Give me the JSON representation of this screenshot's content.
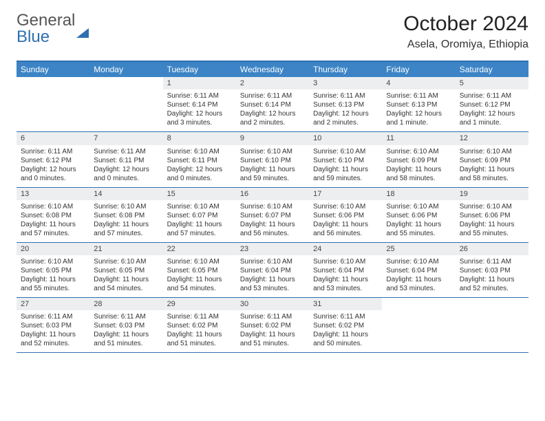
{
  "brand": {
    "part1": "General",
    "part2": "Blue"
  },
  "title": "October 2024",
  "subtitle": "Asela, Oromiya, Ethiopia",
  "colors": {
    "header_bar": "#3c84c6",
    "border": "#2f6fb0",
    "daynum_bg": "#eceef0",
    "text": "#333333"
  },
  "typography": {
    "title_size": 30,
    "subtitle_size": 16,
    "dow_size": 12,
    "cell_size": 10
  },
  "day_of_week": [
    "Sunday",
    "Monday",
    "Tuesday",
    "Wednesday",
    "Thursday",
    "Friday",
    "Saturday"
  ],
  "weeks": [
    [
      {
        "num": "",
        "lines": []
      },
      {
        "num": "",
        "lines": []
      },
      {
        "num": "1",
        "lines": [
          "Sunrise: 6:11 AM",
          "Sunset: 6:14 PM",
          "Daylight: 12 hours",
          "and 3 minutes."
        ]
      },
      {
        "num": "2",
        "lines": [
          "Sunrise: 6:11 AM",
          "Sunset: 6:14 PM",
          "Daylight: 12 hours",
          "and 2 minutes."
        ]
      },
      {
        "num": "3",
        "lines": [
          "Sunrise: 6:11 AM",
          "Sunset: 6:13 PM",
          "Daylight: 12 hours",
          "and 2 minutes."
        ]
      },
      {
        "num": "4",
        "lines": [
          "Sunrise: 6:11 AM",
          "Sunset: 6:13 PM",
          "Daylight: 12 hours",
          "and 1 minute."
        ]
      },
      {
        "num": "5",
        "lines": [
          "Sunrise: 6:11 AM",
          "Sunset: 6:12 PM",
          "Daylight: 12 hours",
          "and 1 minute."
        ]
      }
    ],
    [
      {
        "num": "6",
        "lines": [
          "Sunrise: 6:11 AM",
          "Sunset: 6:12 PM",
          "Daylight: 12 hours",
          "and 0 minutes."
        ]
      },
      {
        "num": "7",
        "lines": [
          "Sunrise: 6:11 AM",
          "Sunset: 6:11 PM",
          "Daylight: 12 hours",
          "and 0 minutes."
        ]
      },
      {
        "num": "8",
        "lines": [
          "Sunrise: 6:10 AM",
          "Sunset: 6:11 PM",
          "Daylight: 12 hours",
          "and 0 minutes."
        ]
      },
      {
        "num": "9",
        "lines": [
          "Sunrise: 6:10 AM",
          "Sunset: 6:10 PM",
          "Daylight: 11 hours",
          "and 59 minutes."
        ]
      },
      {
        "num": "10",
        "lines": [
          "Sunrise: 6:10 AM",
          "Sunset: 6:10 PM",
          "Daylight: 11 hours",
          "and 59 minutes."
        ]
      },
      {
        "num": "11",
        "lines": [
          "Sunrise: 6:10 AM",
          "Sunset: 6:09 PM",
          "Daylight: 11 hours",
          "and 58 minutes."
        ]
      },
      {
        "num": "12",
        "lines": [
          "Sunrise: 6:10 AM",
          "Sunset: 6:09 PM",
          "Daylight: 11 hours",
          "and 58 minutes."
        ]
      }
    ],
    [
      {
        "num": "13",
        "lines": [
          "Sunrise: 6:10 AM",
          "Sunset: 6:08 PM",
          "Daylight: 11 hours",
          "and 57 minutes."
        ]
      },
      {
        "num": "14",
        "lines": [
          "Sunrise: 6:10 AM",
          "Sunset: 6:08 PM",
          "Daylight: 11 hours",
          "and 57 minutes."
        ]
      },
      {
        "num": "15",
        "lines": [
          "Sunrise: 6:10 AM",
          "Sunset: 6:07 PM",
          "Daylight: 11 hours",
          "and 57 minutes."
        ]
      },
      {
        "num": "16",
        "lines": [
          "Sunrise: 6:10 AM",
          "Sunset: 6:07 PM",
          "Daylight: 11 hours",
          "and 56 minutes."
        ]
      },
      {
        "num": "17",
        "lines": [
          "Sunrise: 6:10 AM",
          "Sunset: 6:06 PM",
          "Daylight: 11 hours",
          "and 56 minutes."
        ]
      },
      {
        "num": "18",
        "lines": [
          "Sunrise: 6:10 AM",
          "Sunset: 6:06 PM",
          "Daylight: 11 hours",
          "and 55 minutes."
        ]
      },
      {
        "num": "19",
        "lines": [
          "Sunrise: 6:10 AM",
          "Sunset: 6:06 PM",
          "Daylight: 11 hours",
          "and 55 minutes."
        ]
      }
    ],
    [
      {
        "num": "20",
        "lines": [
          "Sunrise: 6:10 AM",
          "Sunset: 6:05 PM",
          "Daylight: 11 hours",
          "and 55 minutes."
        ]
      },
      {
        "num": "21",
        "lines": [
          "Sunrise: 6:10 AM",
          "Sunset: 6:05 PM",
          "Daylight: 11 hours",
          "and 54 minutes."
        ]
      },
      {
        "num": "22",
        "lines": [
          "Sunrise: 6:10 AM",
          "Sunset: 6:05 PM",
          "Daylight: 11 hours",
          "and 54 minutes."
        ]
      },
      {
        "num": "23",
        "lines": [
          "Sunrise: 6:10 AM",
          "Sunset: 6:04 PM",
          "Daylight: 11 hours",
          "and 53 minutes."
        ]
      },
      {
        "num": "24",
        "lines": [
          "Sunrise: 6:10 AM",
          "Sunset: 6:04 PM",
          "Daylight: 11 hours",
          "and 53 minutes."
        ]
      },
      {
        "num": "25",
        "lines": [
          "Sunrise: 6:10 AM",
          "Sunset: 6:04 PM",
          "Daylight: 11 hours",
          "and 53 minutes."
        ]
      },
      {
        "num": "26",
        "lines": [
          "Sunrise: 6:11 AM",
          "Sunset: 6:03 PM",
          "Daylight: 11 hours",
          "and 52 minutes."
        ]
      }
    ],
    [
      {
        "num": "27",
        "lines": [
          "Sunrise: 6:11 AM",
          "Sunset: 6:03 PM",
          "Daylight: 11 hours",
          "and 52 minutes."
        ]
      },
      {
        "num": "28",
        "lines": [
          "Sunrise: 6:11 AM",
          "Sunset: 6:03 PM",
          "Daylight: 11 hours",
          "and 51 minutes."
        ]
      },
      {
        "num": "29",
        "lines": [
          "Sunrise: 6:11 AM",
          "Sunset: 6:02 PM",
          "Daylight: 11 hours",
          "and 51 minutes."
        ]
      },
      {
        "num": "30",
        "lines": [
          "Sunrise: 6:11 AM",
          "Sunset: 6:02 PM",
          "Daylight: 11 hours",
          "and 51 minutes."
        ]
      },
      {
        "num": "31",
        "lines": [
          "Sunrise: 6:11 AM",
          "Sunset: 6:02 PM",
          "Daylight: 11 hours",
          "and 50 minutes."
        ]
      },
      {
        "num": "",
        "lines": []
      },
      {
        "num": "",
        "lines": []
      }
    ]
  ]
}
